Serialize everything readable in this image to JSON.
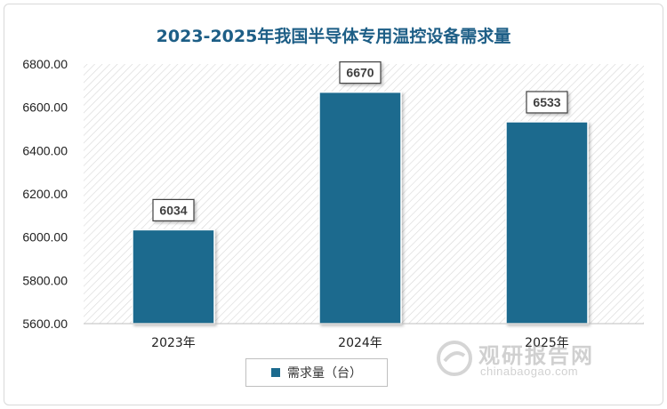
{
  "chart_data": {
    "type": "bar",
    "title": "2023-2025年我国半导体专用温控设备需求量",
    "categories": [
      "2023年",
      "2024年",
      "2025年"
    ],
    "series": [
      {
        "name": "需求量（台）",
        "values": [
          6034,
          6670,
          6533
        ],
        "color": "#1b6a8e"
      }
    ],
    "data_labels": [
      "6034",
      "6670",
      "6533"
    ],
    "ylim": [
      5600,
      6800
    ],
    "yticks": [
      "5600.00",
      "5800.00",
      "6000.00",
      "6200.00",
      "6400.00",
      "6600.00",
      "6800.00"
    ],
    "ytick_values": [
      5600,
      5800,
      6000,
      6200,
      6400,
      6600,
      6800
    ],
    "legend_position": "bottom",
    "plot_background": "hatched"
  },
  "watermark": {
    "name": "观研报告网",
    "url": "chinabaogao.com"
  }
}
